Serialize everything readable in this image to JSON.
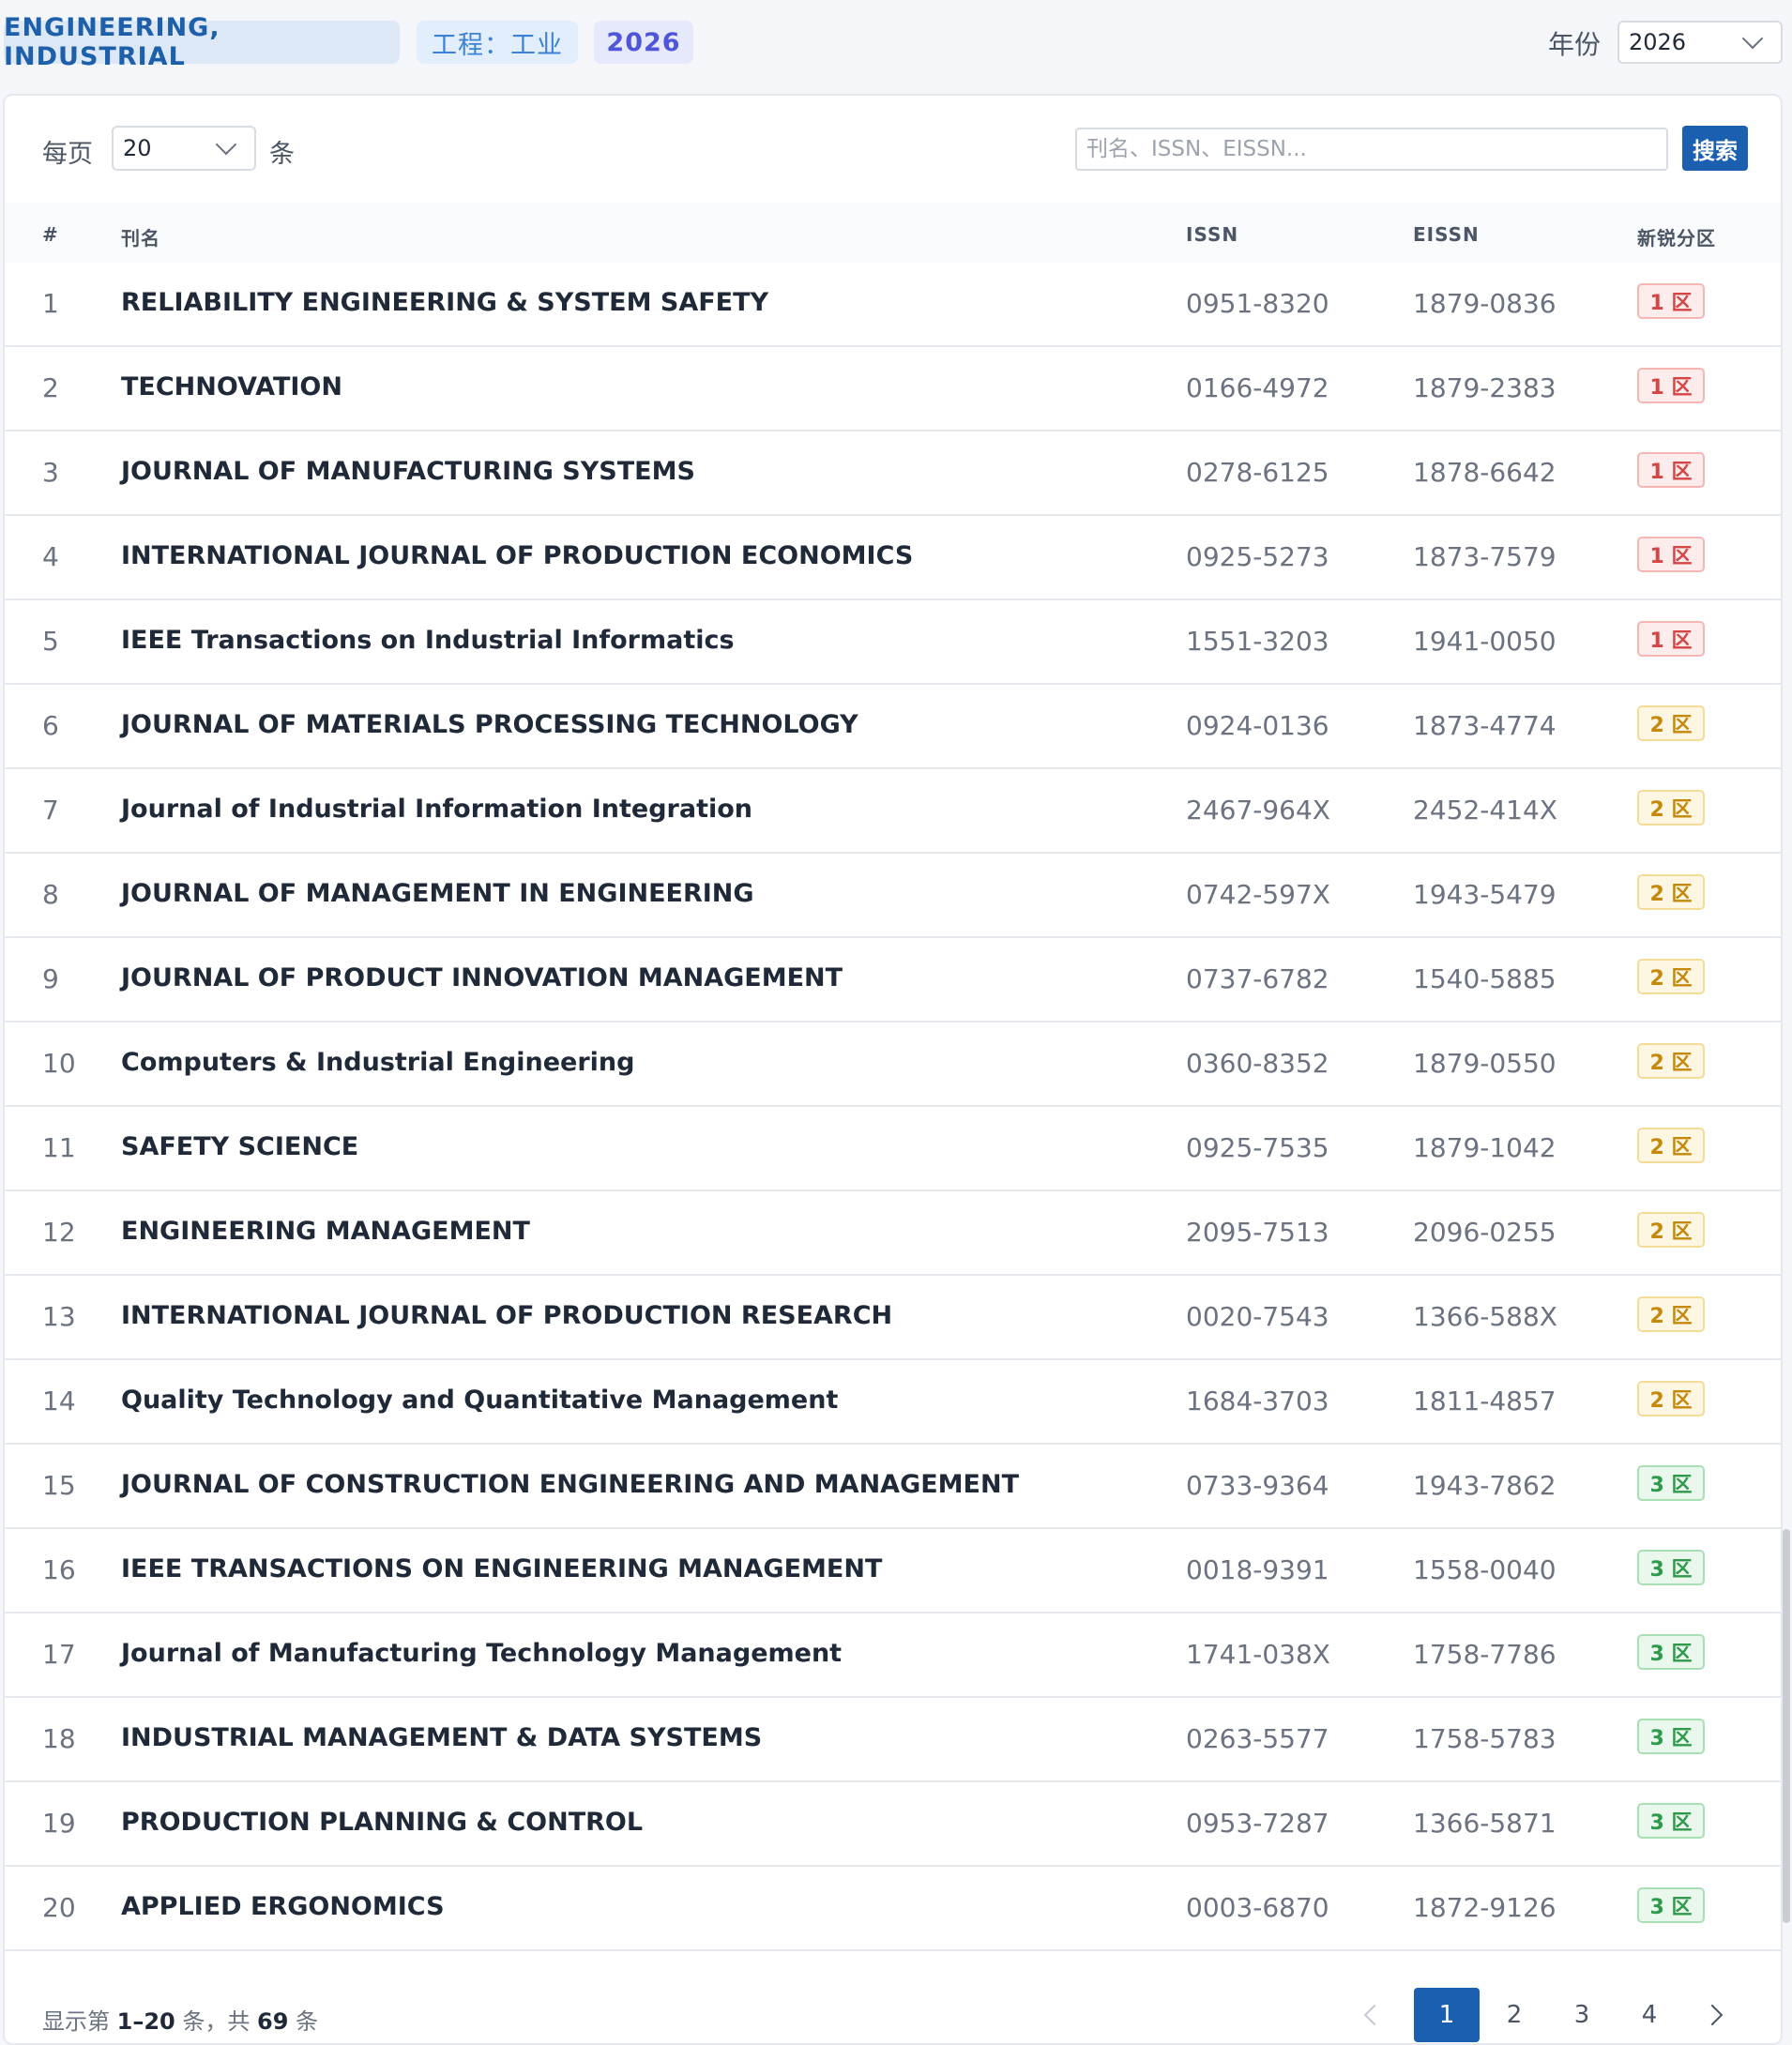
{
  "header": {
    "subject_en": "ENGINEERING, INDUSTRIAL",
    "subject_cn": "工程：工业",
    "year_badge": "2026",
    "year_label": "年份",
    "year_value": "2026"
  },
  "toolbar": {
    "per_page_label": "每页",
    "per_page_value": "20",
    "per_page_unit": "条",
    "search_placeholder": "刊名、ISSN、EISSN...",
    "search_button": "搜索"
  },
  "table": {
    "columns": {
      "index": "#",
      "name": "刊名",
      "issn": "ISSN",
      "eissn": "EISSN",
      "zone": "新锐分区"
    },
    "rows": [
      {
        "idx": "1",
        "name": "RELIABILITY ENGINEERING & SYSTEM SAFETY",
        "issn": "0951-8320",
        "eissn": "1879-0836",
        "zone": "1 区"
      },
      {
        "idx": "2",
        "name": "TECHNOVATION",
        "issn": "0166-4972",
        "eissn": "1879-2383",
        "zone": "1 区"
      },
      {
        "idx": "3",
        "name": "JOURNAL OF MANUFACTURING SYSTEMS",
        "issn": "0278-6125",
        "eissn": "1878-6642",
        "zone": "1 区"
      },
      {
        "idx": "4",
        "name": "INTERNATIONAL JOURNAL OF PRODUCTION ECONOMICS",
        "issn": "0925-5273",
        "eissn": "1873-7579",
        "zone": "1 区"
      },
      {
        "idx": "5",
        "name": "IEEE Transactions on Industrial Informatics",
        "issn": "1551-3203",
        "eissn": "1941-0050",
        "zone": "1 区"
      },
      {
        "idx": "6",
        "name": "JOURNAL OF MATERIALS PROCESSING TECHNOLOGY",
        "issn": "0924-0136",
        "eissn": "1873-4774",
        "zone": "2 区"
      },
      {
        "idx": "7",
        "name": "Journal of Industrial Information Integration",
        "issn": "2467-964X",
        "eissn": "2452-414X",
        "zone": "2 区"
      },
      {
        "idx": "8",
        "name": "JOURNAL OF MANAGEMENT IN ENGINEERING",
        "issn": "0742-597X",
        "eissn": "1943-5479",
        "zone": "2 区"
      },
      {
        "idx": "9",
        "name": "JOURNAL OF PRODUCT INNOVATION MANAGEMENT",
        "issn": "0737-6782",
        "eissn": "1540-5885",
        "zone": "2 区"
      },
      {
        "idx": "10",
        "name": "Computers & Industrial Engineering",
        "issn": "0360-8352",
        "eissn": "1879-0550",
        "zone": "2 区"
      },
      {
        "idx": "11",
        "name": "SAFETY SCIENCE",
        "issn": "0925-7535",
        "eissn": "1879-1042",
        "zone": "2 区"
      },
      {
        "idx": "12",
        "name": "ENGINEERING MANAGEMENT",
        "issn": "2095-7513",
        "eissn": "2096-0255",
        "zone": "2 区"
      },
      {
        "idx": "13",
        "name": "INTERNATIONAL JOURNAL OF PRODUCTION RESEARCH",
        "issn": "0020-7543",
        "eissn": "1366-588X",
        "zone": "2 区"
      },
      {
        "idx": "14",
        "name": "Quality Technology and Quantitative Management",
        "issn": "1684-3703",
        "eissn": "1811-4857",
        "zone": "2 区"
      },
      {
        "idx": "15",
        "name": "JOURNAL OF CONSTRUCTION ENGINEERING AND MANAGEMENT",
        "issn": "0733-9364",
        "eissn": "1943-7862",
        "zone": "3 区"
      },
      {
        "idx": "16",
        "name": "IEEE TRANSACTIONS ON ENGINEERING MANAGEMENT",
        "issn": "0018-9391",
        "eissn": "1558-0040",
        "zone": "3 区"
      },
      {
        "idx": "17",
        "name": "Journal of Manufacturing Technology Management",
        "issn": "1741-038X",
        "eissn": "1758-7786",
        "zone": "3 区"
      },
      {
        "idx": "18",
        "name": "INDUSTRIAL MANAGEMENT & DATA SYSTEMS",
        "issn": "0263-5577",
        "eissn": "1758-5783",
        "zone": "3 区"
      },
      {
        "idx": "19",
        "name": "PRODUCTION PLANNING & CONTROL",
        "issn": "0953-7287",
        "eissn": "1366-5871",
        "zone": "3 区"
      },
      {
        "idx": "20",
        "name": "APPLIED ERGONOMICS",
        "issn": "0003-6870",
        "eissn": "1872-9126",
        "zone": "3 区"
      }
    ]
  },
  "footer": {
    "summary_prefix": "显示第 ",
    "summary_range": "1–20",
    "summary_mid": " 条，共 ",
    "summary_total": "69",
    "summary_suffix": " 条",
    "pages": [
      "1",
      "2",
      "3",
      "4"
    ],
    "active_page": "1",
    "prev_icon": "chevron-left-icon",
    "next_icon": "chevron-right-icon"
  },
  "colors": {
    "accent": "#1b5fb0",
    "zone1": "#d64545",
    "zone2": "#c4890b",
    "zone3": "#2f9a4b"
  }
}
